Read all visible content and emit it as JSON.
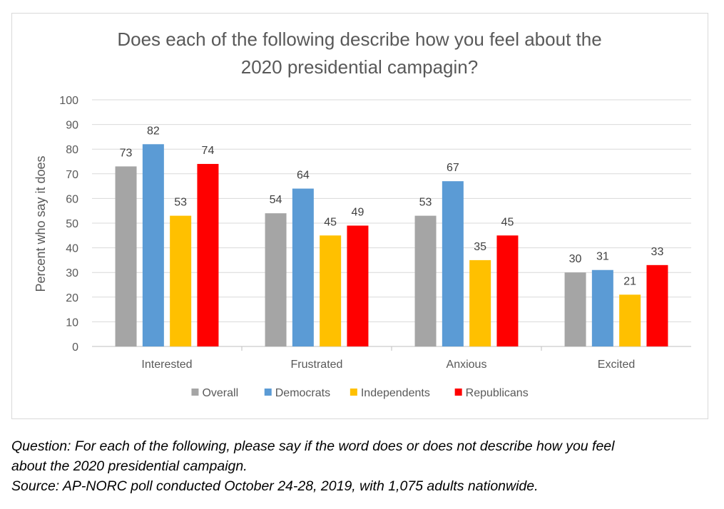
{
  "chart_data": {
    "type": "bar",
    "title_line1": "Does each of the following describe how you feel about the",
    "title_line2": "2020 presidential campagin?",
    "xlabel": "",
    "ylabel": "Percent who say it does",
    "ylim": [
      0,
      100
    ],
    "yticks": [
      0,
      10,
      20,
      30,
      40,
      50,
      60,
      70,
      80,
      90,
      100
    ],
    "grid": true,
    "legend_position": "bottom",
    "categories": [
      "Interested",
      "Frustrated",
      "Anxious",
      "Excited"
    ],
    "series": [
      {
        "name": "Overall",
        "color": "#a5a5a5",
        "values": [
          73,
          54,
          53,
          30
        ]
      },
      {
        "name": "Democrats",
        "color": "#5b9bd5",
        "values": [
          82,
          64,
          67,
          31
        ]
      },
      {
        "name": "Independents",
        "color": "#ffc000",
        "values": [
          53,
          45,
          35,
          21
        ]
      },
      {
        "name": "Republicans",
        "color": "#ff0000",
        "values": [
          74,
          49,
          45,
          33
        ]
      }
    ]
  },
  "notes": {
    "question": "Question:  For each of the following, please say if the word does or does not describe how you feel",
    "question_cont": "about the 2020 presidential campaign.",
    "source": "Source: AP-NORC poll conducted October 24-28, 2019, with 1,075 adults nationwide."
  }
}
